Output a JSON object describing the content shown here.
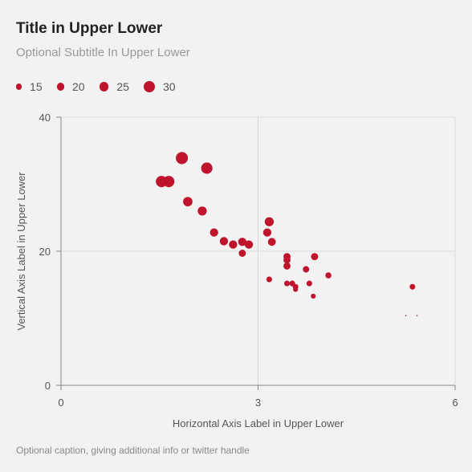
{
  "title": "Title in Upper Lower",
  "subtitle": "Optional Subtitle In Upper Lower",
  "caption": "Optional caption, giving additional info or twitter handle",
  "colors": {
    "marker": "#c0142c",
    "grid": "#d9d9d9",
    "axis": "#888888",
    "text": "#555555"
  },
  "legend": {
    "items": [
      {
        "label": "15",
        "size": 15
      },
      {
        "label": "20",
        "size": 20
      },
      {
        "label": "25",
        "size": 25
      },
      {
        "label": "30",
        "size": 30
      }
    ]
  },
  "chart_data": {
    "type": "scatter",
    "title": "Title in Upper Lower",
    "subtitle": "Optional Subtitle In Upper Lower",
    "xlabel": "Horizontal Axis Label in Upper Lower",
    "ylabel": "Vertical Axis Label in Upper Lower",
    "xlim": [
      0,
      6
    ],
    "ylim": [
      0,
      40
    ],
    "xticks": [
      "0",
      "3",
      "6"
    ],
    "yticks": [
      "0",
      "20",
      "40"
    ],
    "grid": true,
    "legend_position": "top-left",
    "size_legend": [
      15,
      20,
      25,
      30
    ],
    "points": [
      {
        "x": 1.53,
        "y": 30.4,
        "size": 30
      },
      {
        "x": 1.64,
        "y": 30.4,
        "size": 30
      },
      {
        "x": 1.84,
        "y": 33.9,
        "size": 32
      },
      {
        "x": 2.22,
        "y": 32.4,
        "size": 30
      },
      {
        "x": 1.93,
        "y": 27.4,
        "size": 25
      },
      {
        "x": 2.15,
        "y": 26.0,
        "size": 24
      },
      {
        "x": 2.33,
        "y": 22.8,
        "size": 22
      },
      {
        "x": 2.48,
        "y": 21.5,
        "size": 22
      },
      {
        "x": 2.62,
        "y": 21.0,
        "size": 22
      },
      {
        "x": 2.76,
        "y": 21.4,
        "size": 22
      },
      {
        "x": 2.86,
        "y": 21.0,
        "size": 22
      },
      {
        "x": 2.76,
        "y": 19.7,
        "size": 19
      },
      {
        "x": 3.17,
        "y": 24.4,
        "size": 24
      },
      {
        "x": 3.14,
        "y": 22.8,
        "size": 22
      },
      {
        "x": 3.21,
        "y": 21.4,
        "size": 21
      },
      {
        "x": 3.44,
        "y": 19.2,
        "size": 19
      },
      {
        "x": 3.44,
        "y": 18.7,
        "size": 19
      },
      {
        "x": 3.44,
        "y": 17.8,
        "size": 19
      },
      {
        "x": 3.86,
        "y": 19.2,
        "size": 19
      },
      {
        "x": 3.73,
        "y": 17.3,
        "size": 17
      },
      {
        "x": 3.17,
        "y": 15.8,
        "size": 15
      },
      {
        "x": 3.44,
        "y": 15.2,
        "size": 15
      },
      {
        "x": 3.52,
        "y": 15.2,
        "size": 15
      },
      {
        "x": 3.57,
        "y": 14.7,
        "size": 15
      },
      {
        "x": 3.57,
        "y": 14.3,
        "size": 13
      },
      {
        "x": 3.78,
        "y": 15.2,
        "size": 15
      },
      {
        "x": 4.07,
        "y": 16.4,
        "size": 16
      },
      {
        "x": 3.84,
        "y": 13.3,
        "size": 13
      },
      {
        "x": 5.35,
        "y": 14.7,
        "size": 15
      },
      {
        "x": 5.25,
        "y": 10.4,
        "size": 2
      },
      {
        "x": 5.42,
        "y": 10.4,
        "size": 2
      }
    ]
  }
}
